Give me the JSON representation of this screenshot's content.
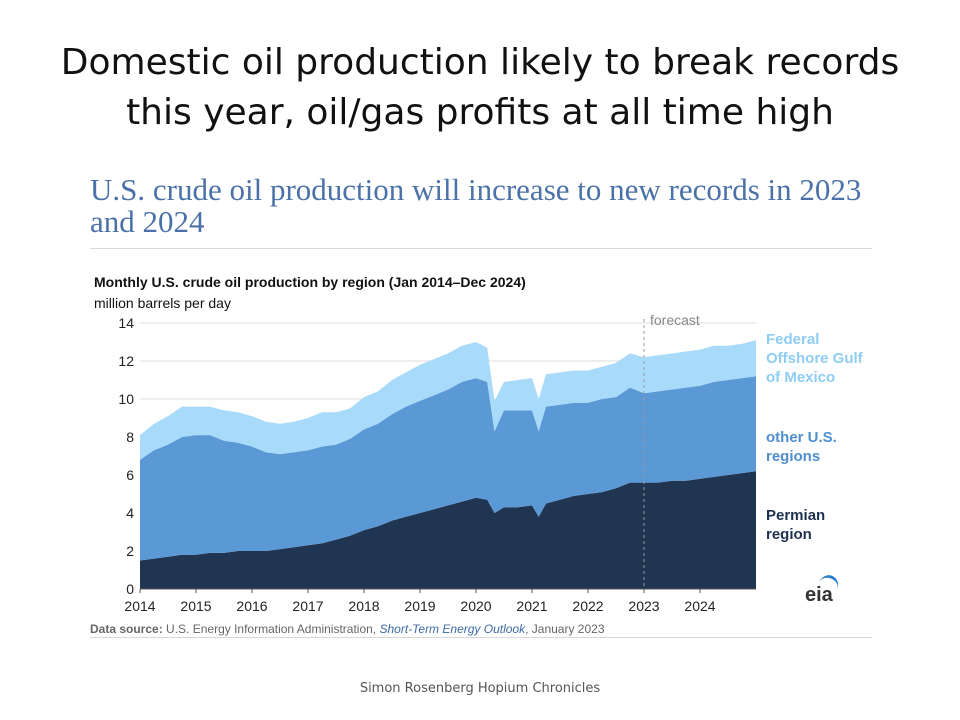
{
  "slide": {
    "title": "Domestic oil production likely to break records this year, oil/gas profits at all time high",
    "footer": "Simon Rosenberg Hopium Chronicles"
  },
  "figure": {
    "headline": "U.S. crude oil production will increase to new records in 2023 and 2024",
    "source_label": "Data source:",
    "source_agency": "U.S. Energy Information Administration,",
    "source_report": "Short-Term Energy Outlook",
    "source_date": ", January 2023",
    "logo_text": "eia"
  },
  "legend": {
    "gulf": "Federal Offshore Gulf of Mexico",
    "other": "other U.S. regions",
    "permian": "Permian region"
  },
  "colors": {
    "gulf": "#a8dafa",
    "other": "#5b98d6",
    "permian": "#1f3551"
  },
  "chart_data": {
    "type": "area",
    "stacked": true,
    "title": "Monthly U.S. crude oil production by region (Jan 2014–Dec 2024)",
    "ylabel": "million barrels per day",
    "ylim": [
      0,
      14
    ],
    "yticks": [
      0,
      2,
      4,
      6,
      8,
      10,
      12,
      14
    ],
    "xlim": [
      2014.0,
      2025.0
    ],
    "xticks": [
      "2014",
      "2015",
      "2016",
      "2017",
      "2018",
      "2019",
      "2020",
      "2021",
      "2022",
      "2023",
      "2024"
    ],
    "forecast_label": "forecast",
    "forecast_start": 2023.0,
    "x": [
      2014.0,
      2014.25,
      2014.5,
      2014.75,
      2015.0,
      2015.25,
      2015.5,
      2015.75,
      2016.0,
      2016.25,
      2016.5,
      2016.75,
      2017.0,
      2017.25,
      2017.5,
      2017.75,
      2018.0,
      2018.25,
      2018.5,
      2018.75,
      2019.0,
      2019.25,
      2019.5,
      2019.75,
      2020.0,
      2020.2,
      2020.33,
      2020.5,
      2020.75,
      2021.0,
      2021.12,
      2021.25,
      2021.5,
      2021.75,
      2022.0,
      2022.25,
      2022.5,
      2022.75,
      2023.0,
      2023.25,
      2023.5,
      2023.75,
      2024.0,
      2024.25,
      2024.5,
      2024.75,
      2025.0
    ],
    "series": [
      {
        "name": "Permian region",
        "values": [
          1.5,
          1.6,
          1.7,
          1.8,
          1.8,
          1.9,
          1.9,
          2.0,
          2.0,
          2.0,
          2.1,
          2.2,
          2.3,
          2.4,
          2.6,
          2.8,
          3.1,
          3.3,
          3.6,
          3.8,
          4.0,
          4.2,
          4.4,
          4.6,
          4.8,
          4.7,
          4.0,
          4.3,
          4.3,
          4.4,
          3.8,
          4.5,
          4.7,
          4.9,
          5.0,
          5.1,
          5.3,
          5.6,
          5.6,
          5.6,
          5.7,
          5.7,
          5.8,
          5.9,
          6.0,
          6.1,
          6.2
        ]
      },
      {
        "name": "other U.S. regions",
        "values": [
          5.3,
          5.7,
          5.9,
          6.2,
          6.3,
          6.2,
          5.9,
          5.7,
          5.5,
          5.2,
          5.0,
          5.0,
          5.0,
          5.1,
          5.0,
          5.1,
          5.3,
          5.4,
          5.6,
          5.8,
          5.9,
          6.0,
          6.1,
          6.3,
          6.3,
          6.2,
          4.3,
          5.1,
          5.1,
          5.0,
          4.5,
          5.1,
          5.0,
          4.9,
          4.8,
          4.9,
          4.8,
          5.0,
          4.7,
          4.8,
          4.8,
          4.9,
          4.9,
          5.0,
          5.0,
          5.0,
          5.0
        ]
      },
      {
        "name": "Federal Offshore Gulf of Mexico",
        "values": [
          1.3,
          1.4,
          1.5,
          1.6,
          1.5,
          1.5,
          1.6,
          1.6,
          1.6,
          1.6,
          1.6,
          1.6,
          1.7,
          1.8,
          1.7,
          1.6,
          1.7,
          1.7,
          1.8,
          1.8,
          1.9,
          1.9,
          1.9,
          1.9,
          1.9,
          1.8,
          1.6,
          1.5,
          1.6,
          1.7,
          1.7,
          1.7,
          1.7,
          1.7,
          1.7,
          1.7,
          1.8,
          1.8,
          1.9,
          1.9,
          1.9,
          1.9,
          1.9,
          1.9,
          1.8,
          1.8,
          1.9
        ]
      }
    ]
  }
}
